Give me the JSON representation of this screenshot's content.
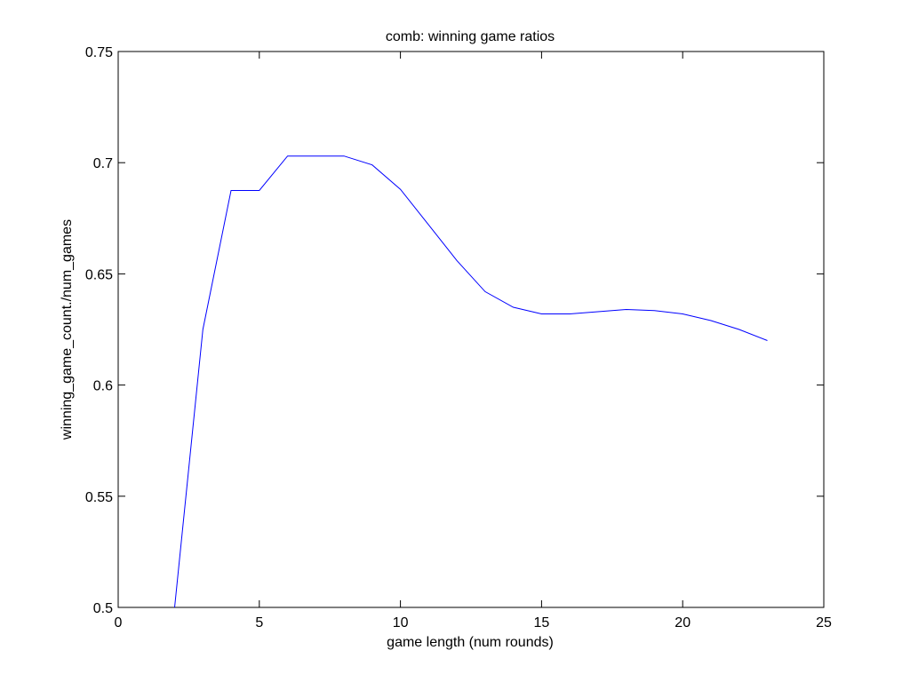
{
  "chart_data": {
    "type": "line",
    "title": "comb: winning game ratios",
    "xlabel": "game length (num rounds)",
    "ylabel": "winning_game_count./num_games",
    "xlim": [
      0,
      25
    ],
    "ylim": [
      0.5,
      0.75
    ],
    "xticks": [
      0,
      5,
      10,
      15,
      20,
      25
    ],
    "yticks": [
      0.5,
      0.55,
      0.6,
      0.65,
      0.7,
      0.75
    ],
    "xtick_labels": [
      "0",
      "5",
      "10",
      "15",
      "20",
      "25"
    ],
    "ytick_labels": [
      "0.5",
      "0.55",
      "0.6",
      "0.65",
      "0.7",
      "0.75"
    ],
    "grid": false,
    "line_color": "#0000ff",
    "axis_color": "#000000",
    "series": [
      {
        "x": [
          2,
          3,
          4,
          5,
          6,
          7,
          8,
          9,
          10,
          11,
          12,
          13,
          14,
          15,
          16,
          17,
          18,
          19,
          20,
          21,
          22,
          23
        ],
        "y": [
          0.5,
          0.625,
          0.6875,
          0.6875,
          0.703,
          0.703,
          0.703,
          0.699,
          0.688,
          0.672,
          0.656,
          0.642,
          0.635,
          0.632,
          0.632,
          0.633,
          0.634,
          0.6335,
          0.632,
          0.629,
          0.625,
          0.62
        ]
      }
    ]
  }
}
